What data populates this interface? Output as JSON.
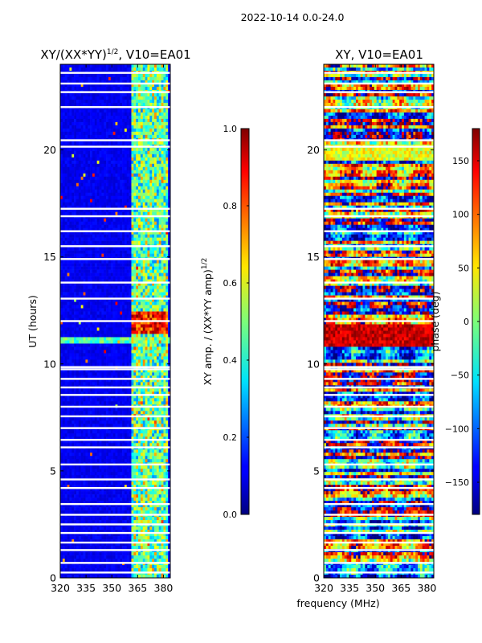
{
  "figure_title": "2022-10-14 0.0-24.0",
  "shared_xlabel": "frequency (MHz)",
  "chart_data": [
    {
      "type": "heatmap",
      "title_main": "XY/(XX*YY)",
      "title_sup": "1/2",
      "title_suffix": ", V10=EA01",
      "xlabel": "",
      "ylabel": "UT (hours)",
      "xlim": [
        320,
        384
      ],
      "ylim": [
        0,
        24
      ],
      "xticks": [
        320,
        335,
        350,
        365,
        380
      ],
      "yticks": [
        0,
        5,
        10,
        15,
        20
      ],
      "colorbar": {
        "label_main": "XY amp. / (XX*YY amp)",
        "label_sup": "1/2",
        "range": [
          0.0,
          1.0
        ],
        "ticks": [
          "0.0",
          "0.2",
          "0.4",
          "0.6",
          "0.8",
          "1.0"
        ],
        "tick_values": [
          0.0,
          0.2,
          0.4,
          0.6,
          0.8,
          1.0
        ]
      },
      "colormap": "jet"
    },
    {
      "type": "heatmap",
      "title_main": "XY, V10=EA01",
      "title_sup": "",
      "title_suffix": "",
      "xlabel": "frequency (MHz)",
      "ylabel": "",
      "xlim": [
        320,
        384
      ],
      "ylim": [
        0,
        24
      ],
      "xticks": [
        320,
        335,
        350,
        365,
        380
      ],
      "yticks": [
        0,
        5,
        10,
        15,
        20
      ],
      "colorbar": {
        "label_main": "phase (deg)",
        "label_sup": "",
        "range": [
          -180,
          180
        ],
        "ticks": [
          "150",
          "100",
          "50",
          "0",
          "−50",
          "−100",
          "−150"
        ],
        "tick_values": [
          150,
          100,
          50,
          0,
          -50,
          -100,
          -150
        ]
      },
      "colormap": "jet"
    }
  ]
}
